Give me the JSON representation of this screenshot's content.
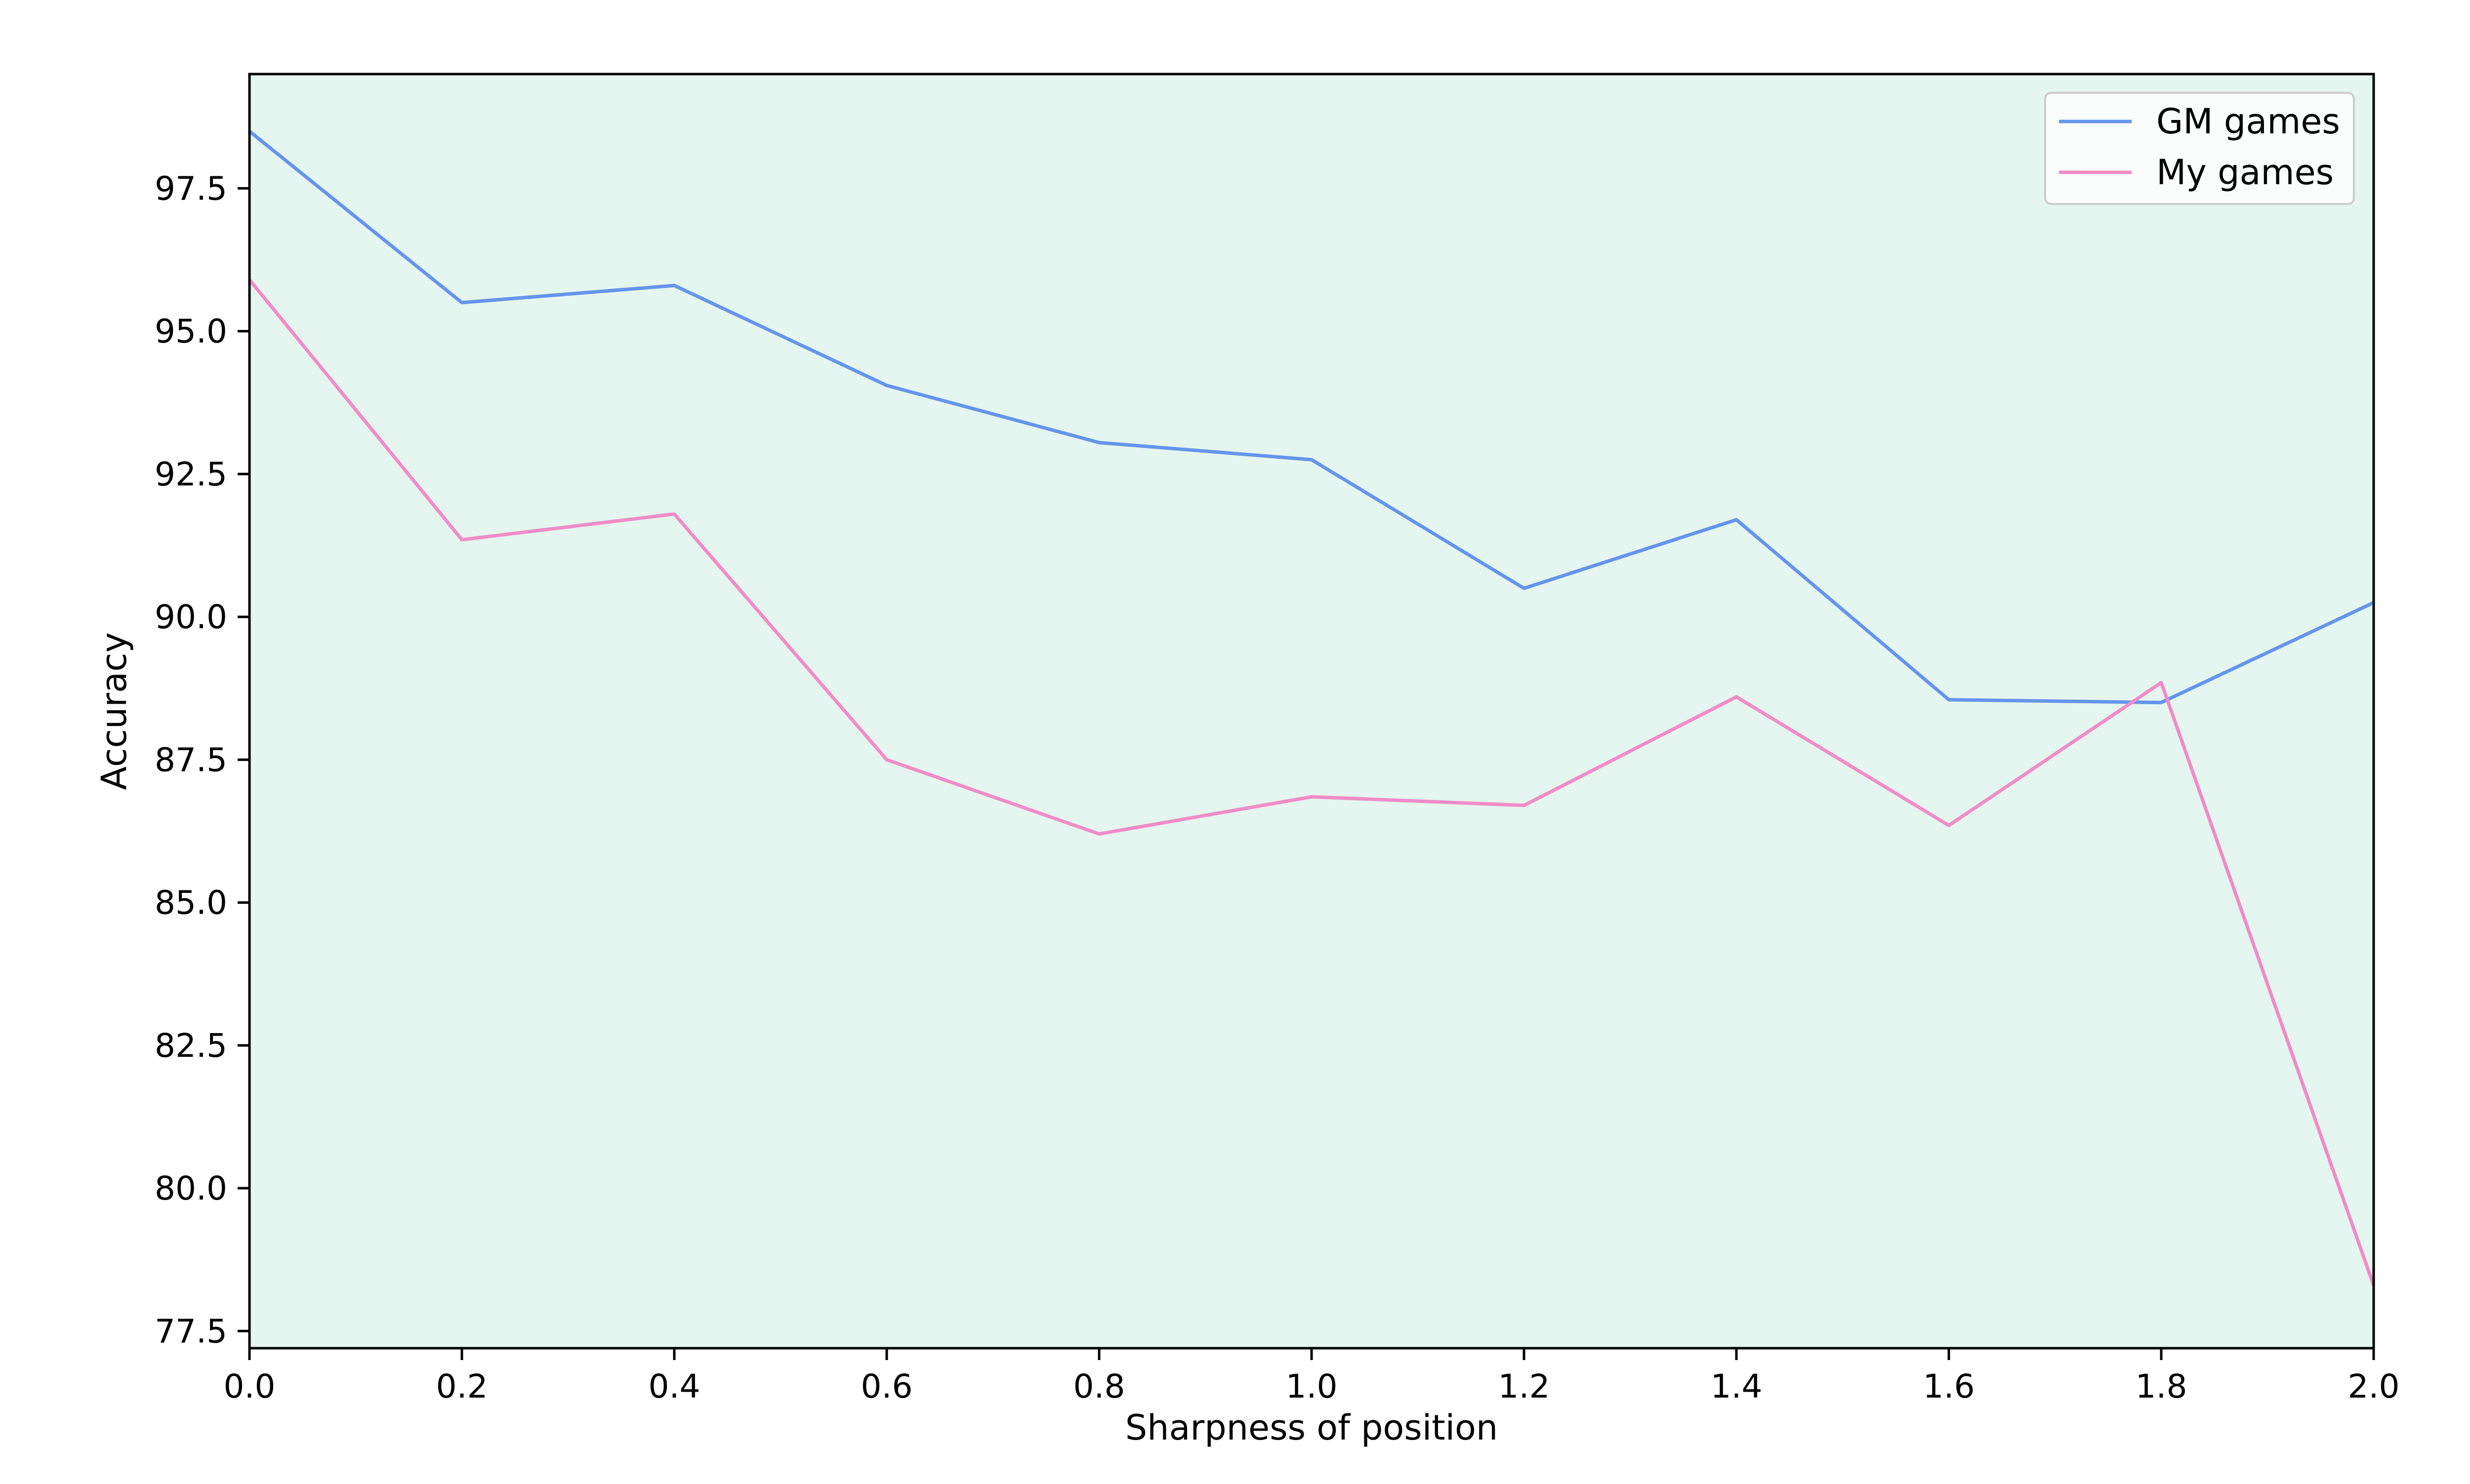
{
  "colors": {
    "background": "#ffffff",
    "plot_background": "#e5f5ef",
    "gm_line": "#6495ed",
    "my_line": "#f08cc8",
    "axis": "#000000"
  },
  "chart_data": {
    "type": "line",
    "title": "",
    "xlabel": "Sharpness of position",
    "ylabel": "Accuracy",
    "xlim": [
      0.0,
      2.0
    ],
    "ylim": [
      77.2,
      99.5
    ],
    "x": [
      0.0,
      0.2,
      0.4,
      0.6,
      0.8,
      1.0,
      1.2,
      1.4,
      1.6,
      1.8,
      2.0
    ],
    "xticks": [
      "0.0",
      "0.2",
      "0.4",
      "0.6",
      "0.8",
      "1.0",
      "1.2",
      "1.4",
      "1.6",
      "1.8",
      "2.0"
    ],
    "yticks": [
      "77.5",
      "80.0",
      "82.5",
      "85.0",
      "87.5",
      "90.0",
      "92.5",
      "95.0",
      "97.5"
    ],
    "grid": false,
    "legend_position": "top-right",
    "series": [
      {
        "name": "GM games",
        "color": "#6495ed",
        "values": [
          98.5,
          95.5,
          95.8,
          94.05,
          93.05,
          92.75,
          90.5,
          91.7,
          88.55,
          88.5,
          90.25
        ]
      },
      {
        "name": "My games",
        "color": "#f08cc8",
        "values": [
          95.9,
          91.35,
          91.8,
          87.5,
          86.2,
          86.85,
          86.7,
          88.6,
          86.35,
          88.85,
          78.3
        ]
      }
    ]
  }
}
